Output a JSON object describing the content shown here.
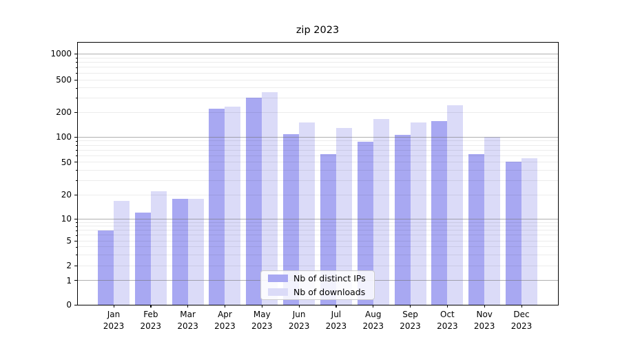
{
  "chart_data": {
    "type": "bar",
    "title": "zip 2023",
    "x_months": [
      "Jan",
      "Feb",
      "Mar",
      "Apr",
      "May",
      "Jun",
      "Jul",
      "Aug",
      "Sep",
      "Oct",
      "Nov",
      "Dec"
    ],
    "x_year": "2023",
    "series": [
      {
        "name": "Nb of distinct IPs",
        "color": "#a8a8f2",
        "values": [
          7,
          12,
          18,
          220,
          304,
          109,
          62,
          88,
          107,
          158,
          62,
          51
        ]
      },
      {
        "name": "Nb of downloads",
        "color": "#dbdbf8",
        "values": [
          17,
          22,
          18,
          235,
          355,
          152,
          130,
          166,
          151,
          246,
          101,
          56
        ]
      }
    ],
    "y_ticks": [
      0,
      1,
      2,
      5,
      10,
      20,
      50,
      100,
      200,
      500,
      1000
    ],
    "y_scale": "symlog",
    "ylim": [
      0,
      1400
    ],
    "grid": true,
    "legend_position": "lower center inside"
  }
}
